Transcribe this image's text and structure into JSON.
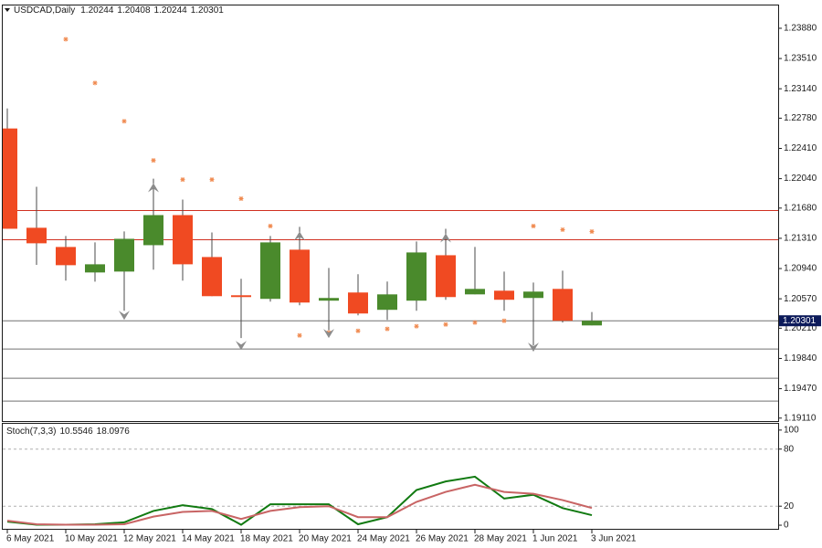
{
  "chart_data": {
    "type": "candlestick",
    "title": "USDCAD,Daily",
    "categories": [
      "6 May 2021",
      null,
      "10 May 2021",
      null,
      "12 May 2021",
      null,
      "14 May 2021",
      null,
      "18 May 2021",
      null,
      "20 May 2021",
      null,
      "24 May 2021",
      null,
      "26 May 2021",
      null,
      "28 May 2021",
      null,
      "1 Jun 2021",
      null,
      "3 Jun 2021"
    ],
    "open": [
      1.22654,
      1.21439,
      1.21204,
      1.20892,
      1.20903,
      1.21226,
      1.21594,
      1.21081,
      1.20613,
      1.20569,
      1.21171,
      1.20547,
      1.20647,
      1.20435,
      1.20547,
      1.21103,
      1.20624,
      1.20669,
      1.2058,
      1.20691,
      1.20244
    ],
    "high": [
      1.22899,
      1.2194,
      1.21338,
      1.2126,
      1.21394,
      1.2204,
      1.21784,
      1.21382,
      1.20814,
      1.21338,
      1.2145,
      1.20948,
      1.2087,
      1.20781,
      1.21271,
      1.21427,
      1.21204,
      1.20903,
      1.20769,
      1.20914,
      1.20408
    ],
    "low": [
      1.21427,
      1.20985,
      1.20792,
      1.2078,
      1.20424,
      1.20926,
      1.20792,
      1.20602,
      1.20089,
      1.20535,
      1.2049,
      1.20156,
      1.20368,
      1.20312,
      1.20424,
      1.20557,
      1.20624,
      1.20424,
      1.19999,
      1.20279,
      1.20244
    ],
    "close": [
      1.21427,
      1.21249,
      1.20981,
      1.20992,
      1.21304,
      1.21594,
      1.20992,
      1.20602,
      1.20591,
      1.2126,
      1.20524,
      1.2058,
      1.2039,
      1.20624,
      1.21137,
      1.20591,
      1.20691,
      1.20558,
      1.20658,
      1.20301,
      1.20301
    ],
    "up_color": "#4a8a2c",
    "down_color": "#f04a22",
    "sar_values": [
      null,
      null,
      1.23746,
      1.23211,
      1.22743,
      1.22263,
      1.22029,
      1.22029,
      1.21795,
      1.2146,
      1.20122,
      1.20156,
      1.20178,
      1.20201,
      1.20234,
      1.20256,
      1.20279,
      1.20301,
      1.2146,
      1.21416,
      1.21393
    ],
    "sar_color": "#f08a50",
    "fractals_up": [
      null,
      null,
      null,
      null,
      null,
      1.21929,
      null,
      null,
      null,
      null,
      1.21338,
      null,
      null,
      null,
      null,
      1.21315,
      null,
      null,
      null,
      null,
      null
    ],
    "fractals_down": [
      null,
      null,
      null,
      null,
      1.20368,
      null,
      null,
      null,
      1.19999,
      null,
      null,
      1.20145,
      null,
      null,
      null,
      null,
      null,
      null,
      1.19978,
      null,
      null
    ],
    "levels": [
      {
        "value": 1.2165,
        "color": "#d03020"
      },
      {
        "value": 1.21293,
        "color": "#d03020"
      },
      {
        "value": 1.19955,
        "color": "#707070"
      },
      {
        "value": 1.19598,
        "color": "#707070"
      },
      {
        "value": 1.19319,
        "color": "#707070"
      }
    ],
    "ylim": [
      1.19074,
      1.24159
    ],
    "yticks": [
      {
        "value": 1.2388,
        "label": "1.23880"
      },
      {
        "value": 1.2351,
        "label": "1.23510"
      },
      {
        "value": 1.2314,
        "label": "1.23140"
      },
      {
        "value": 1.2278,
        "label": "1.22780"
      },
      {
        "value": 1.2241,
        "label": "1.22410"
      },
      {
        "value": 1.2204,
        "label": "1.22040"
      },
      {
        "value": 1.2168,
        "label": "1.21680"
      },
      {
        "value": 1.2131,
        "label": "1.21310"
      },
      {
        "value": 1.2094,
        "label": "1.20940"
      },
      {
        "value": 1.2057,
        "label": "1.20570"
      },
      {
        "value": 1.2021,
        "label": "1.20210"
      },
      {
        "value": 1.1984,
        "label": "1.19840"
      },
      {
        "value": 1.1947,
        "label": "1.19470"
      },
      {
        "value": 1.1911,
        "label": "1.19110"
      }
    ],
    "indicator": {
      "type": "line",
      "title": "Stoch(7,3,3)",
      "series": [
        {
          "color": "#117a11",
          "values": [
            3.8,
            0.5,
            0.5,
            1,
            3,
            15,
            21,
            17,
            0.5,
            22,
            22,
            22,
            1,
            8.5,
            37,
            46,
            51,
            28,
            32,
            18,
            10.5546
          ]
        },
        {
          "color": "#c86464",
          "values": [
            4.7,
            1,
            0.5,
            0.5,
            1,
            9,
            14,
            15,
            6.6,
            15,
            19,
            20,
            8.5,
            8.5,
            24.5,
            35,
            42.5,
            35,
            33,
            26.4,
            18.0976
          ]
        }
      ],
      "ylim": [
        -3.8,
        106.6
      ],
      "yticks": [
        0,
        20,
        80,
        100
      ],
      "levels": [
        20,
        80
      ]
    }
  }
}
